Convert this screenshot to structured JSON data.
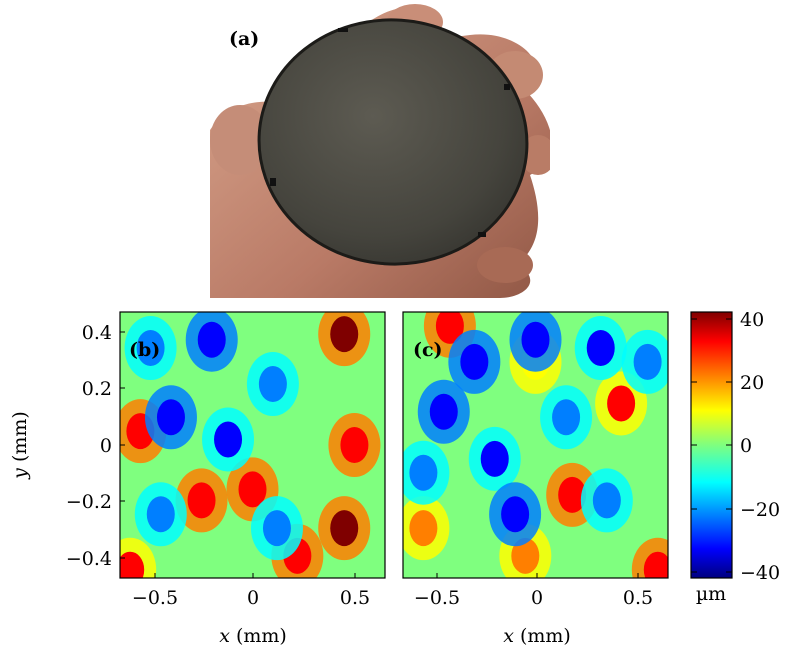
{
  "figure": {
    "panel_a": {
      "label": "(a)"
    },
    "panel_b": {
      "label": "(b)"
    },
    "panel_c": {
      "label": "(c)"
    },
    "axes": {
      "x_var": "x",
      "x_unit": "(mm)",
      "y_var": "y",
      "y_unit": "(mm)",
      "x_ticks": [
        "−0.5",
        "0",
        "0.5"
      ],
      "y_ticks": [
        "0.4",
        "0.2",
        "0",
        "−0.2",
        "−0.4"
      ]
    },
    "colorbar": {
      "ticks": [
        "40",
        "20",
        "0",
        "−20",
        "−40"
      ],
      "unit": "µm",
      "colormap": [
        "#00007f",
        "#0000ff",
        "#007fff",
        "#00ffff",
        "#7fff7f",
        "#ffff00",
        "#ff7f00",
        "#ff0000",
        "#7f0000"
      ]
    }
  },
  "chart_data": [
    {
      "type": "heatmap",
      "panel": "(b)",
      "xlabel": "x (mm)",
      "ylabel": "y (mm)",
      "xlim": [
        -0.65,
        0.65
      ],
      "ylim": [
        -0.48,
        0.48
      ],
      "x_ticks": [
        -0.5,
        0,
        0.5
      ],
      "y_ticks": [
        -0.4,
        -0.2,
        0,
        0.2,
        0.4
      ],
      "zlim": [
        -42,
        42
      ],
      "hotspots": [
        {
          "x": -0.55,
          "y": 0.05,
          "z": 35
        },
        {
          "x": -0.25,
          "y": -0.2,
          "z": 32
        },
        {
          "x": 0.0,
          "y": -0.16,
          "z": 34
        },
        {
          "x": 0.45,
          "y": 0.4,
          "z": 38
        },
        {
          "x": 0.5,
          "y": 0.0,
          "z": 30
        },
        {
          "x": 0.45,
          "y": -0.3,
          "z": 40
        },
        {
          "x": 0.22,
          "y": -0.4,
          "z": 35
        },
        {
          "x": -0.6,
          "y": -0.45,
          "z": 28
        },
        {
          "x": -0.2,
          "y": 0.38,
          "z": -32
        },
        {
          "x": -0.5,
          "y": 0.35,
          "z": -25
        },
        {
          "x": -0.4,
          "y": 0.1,
          "z": -30
        },
        {
          "x": -0.12,
          "y": 0.02,
          "z": -28
        },
        {
          "x": 0.1,
          "y": 0.22,
          "z": -26
        },
        {
          "x": -0.45,
          "y": -0.25,
          "z": -22
        },
        {
          "x": 0.12,
          "y": -0.3,
          "z": -24
        }
      ]
    },
    {
      "type": "heatmap",
      "panel": "(c)",
      "xlabel": "x (mm)",
      "xlim": [
        -0.65,
        0.65
      ],
      "ylim": [
        -0.48,
        0.48
      ],
      "x_ticks": [
        -0.5,
        0,
        0.5
      ],
      "zlim": [
        -42,
        42
      ],
      "hotspots": [
        {
          "x": -0.42,
          "y": 0.43,
          "z": 30
        },
        {
          "x": 0.18,
          "y": -0.18,
          "z": 34
        },
        {
          "x": 0.42,
          "y": 0.15,
          "z": 28
        },
        {
          "x": -0.05,
          "y": -0.4,
          "z": 26
        },
        {
          "x": 0.6,
          "y": -0.45,
          "z": 30
        },
        {
          "x": -0.55,
          "y": -0.3,
          "z": 20
        },
        {
          "x": 0.0,
          "y": 0.3,
          "z": 15
        },
        {
          "x": -0.3,
          "y": 0.3,
          "z": -34
        },
        {
          "x": -0.45,
          "y": 0.12,
          "z": -32
        },
        {
          "x": -0.2,
          "y": -0.05,
          "z": -28
        },
        {
          "x": 0.0,
          "y": 0.38,
          "z": -30
        },
        {
          "x": 0.15,
          "y": 0.1,
          "z": -26
        },
        {
          "x": 0.32,
          "y": 0.35,
          "z": -28
        },
        {
          "x": -0.1,
          "y": -0.25,
          "z": -30
        },
        {
          "x": 0.35,
          "y": -0.2,
          "z": -22
        },
        {
          "x": 0.55,
          "y": 0.3,
          "z": -26
        },
        {
          "x": -0.55,
          "y": -0.1,
          "z": -24
        }
      ]
    }
  ]
}
